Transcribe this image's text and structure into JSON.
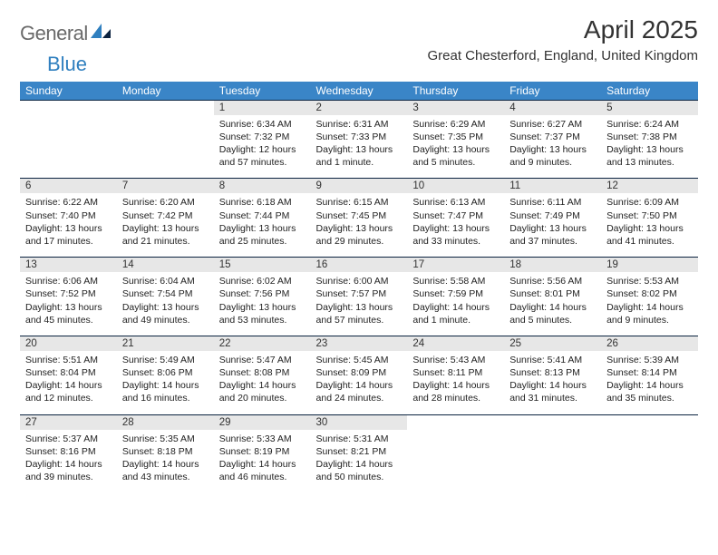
{
  "logo": {
    "text1": "General",
    "text2": "Blue"
  },
  "title": "April 2025",
  "location": "Great Chesterford, England, United Kingdom",
  "dayHeaders": [
    "Sunday",
    "Monday",
    "Tuesday",
    "Wednesday",
    "Thursday",
    "Friday",
    "Saturday"
  ],
  "colors": {
    "headerBg": "#3a85c7",
    "headerText": "#ffffff",
    "dayNumBg": "#e7e7e7",
    "borderTop": "#0b2340",
    "logoGray": "#6a6a6a",
    "logoBlue": "#2f7fbf",
    "text": "#323232"
  },
  "weeks": [
    [
      null,
      null,
      {
        "n": "1",
        "l1": "Sunrise: 6:34 AM",
        "l2": "Sunset: 7:32 PM",
        "l3": "Daylight: 12 hours",
        "l4": "and 57 minutes."
      },
      {
        "n": "2",
        "l1": "Sunrise: 6:31 AM",
        "l2": "Sunset: 7:33 PM",
        "l3": "Daylight: 13 hours",
        "l4": "and 1 minute."
      },
      {
        "n": "3",
        "l1": "Sunrise: 6:29 AM",
        "l2": "Sunset: 7:35 PM",
        "l3": "Daylight: 13 hours",
        "l4": "and 5 minutes."
      },
      {
        "n": "4",
        "l1": "Sunrise: 6:27 AM",
        "l2": "Sunset: 7:37 PM",
        "l3": "Daylight: 13 hours",
        "l4": "and 9 minutes."
      },
      {
        "n": "5",
        "l1": "Sunrise: 6:24 AM",
        "l2": "Sunset: 7:38 PM",
        "l3": "Daylight: 13 hours",
        "l4": "and 13 minutes."
      }
    ],
    [
      {
        "n": "6",
        "l1": "Sunrise: 6:22 AM",
        "l2": "Sunset: 7:40 PM",
        "l3": "Daylight: 13 hours",
        "l4": "and 17 minutes."
      },
      {
        "n": "7",
        "l1": "Sunrise: 6:20 AM",
        "l2": "Sunset: 7:42 PM",
        "l3": "Daylight: 13 hours",
        "l4": "and 21 minutes."
      },
      {
        "n": "8",
        "l1": "Sunrise: 6:18 AM",
        "l2": "Sunset: 7:44 PM",
        "l3": "Daylight: 13 hours",
        "l4": "and 25 minutes."
      },
      {
        "n": "9",
        "l1": "Sunrise: 6:15 AM",
        "l2": "Sunset: 7:45 PM",
        "l3": "Daylight: 13 hours",
        "l4": "and 29 minutes."
      },
      {
        "n": "10",
        "l1": "Sunrise: 6:13 AM",
        "l2": "Sunset: 7:47 PM",
        "l3": "Daylight: 13 hours",
        "l4": "and 33 minutes."
      },
      {
        "n": "11",
        "l1": "Sunrise: 6:11 AM",
        "l2": "Sunset: 7:49 PM",
        "l3": "Daylight: 13 hours",
        "l4": "and 37 minutes."
      },
      {
        "n": "12",
        "l1": "Sunrise: 6:09 AM",
        "l2": "Sunset: 7:50 PM",
        "l3": "Daylight: 13 hours",
        "l4": "and 41 minutes."
      }
    ],
    [
      {
        "n": "13",
        "l1": "Sunrise: 6:06 AM",
        "l2": "Sunset: 7:52 PM",
        "l3": "Daylight: 13 hours",
        "l4": "and 45 minutes."
      },
      {
        "n": "14",
        "l1": "Sunrise: 6:04 AM",
        "l2": "Sunset: 7:54 PM",
        "l3": "Daylight: 13 hours",
        "l4": "and 49 minutes."
      },
      {
        "n": "15",
        "l1": "Sunrise: 6:02 AM",
        "l2": "Sunset: 7:56 PM",
        "l3": "Daylight: 13 hours",
        "l4": "and 53 minutes."
      },
      {
        "n": "16",
        "l1": "Sunrise: 6:00 AM",
        "l2": "Sunset: 7:57 PM",
        "l3": "Daylight: 13 hours",
        "l4": "and 57 minutes."
      },
      {
        "n": "17",
        "l1": "Sunrise: 5:58 AM",
        "l2": "Sunset: 7:59 PM",
        "l3": "Daylight: 14 hours",
        "l4": "and 1 minute."
      },
      {
        "n": "18",
        "l1": "Sunrise: 5:56 AM",
        "l2": "Sunset: 8:01 PM",
        "l3": "Daylight: 14 hours",
        "l4": "and 5 minutes."
      },
      {
        "n": "19",
        "l1": "Sunrise: 5:53 AM",
        "l2": "Sunset: 8:02 PM",
        "l3": "Daylight: 14 hours",
        "l4": "and 9 minutes."
      }
    ],
    [
      {
        "n": "20",
        "l1": "Sunrise: 5:51 AM",
        "l2": "Sunset: 8:04 PM",
        "l3": "Daylight: 14 hours",
        "l4": "and 12 minutes."
      },
      {
        "n": "21",
        "l1": "Sunrise: 5:49 AM",
        "l2": "Sunset: 8:06 PM",
        "l3": "Daylight: 14 hours",
        "l4": "and 16 minutes."
      },
      {
        "n": "22",
        "l1": "Sunrise: 5:47 AM",
        "l2": "Sunset: 8:08 PM",
        "l3": "Daylight: 14 hours",
        "l4": "and 20 minutes."
      },
      {
        "n": "23",
        "l1": "Sunrise: 5:45 AM",
        "l2": "Sunset: 8:09 PM",
        "l3": "Daylight: 14 hours",
        "l4": "and 24 minutes."
      },
      {
        "n": "24",
        "l1": "Sunrise: 5:43 AM",
        "l2": "Sunset: 8:11 PM",
        "l3": "Daylight: 14 hours",
        "l4": "and 28 minutes."
      },
      {
        "n": "25",
        "l1": "Sunrise: 5:41 AM",
        "l2": "Sunset: 8:13 PM",
        "l3": "Daylight: 14 hours",
        "l4": "and 31 minutes."
      },
      {
        "n": "26",
        "l1": "Sunrise: 5:39 AM",
        "l2": "Sunset: 8:14 PM",
        "l3": "Daylight: 14 hours",
        "l4": "and 35 minutes."
      }
    ],
    [
      {
        "n": "27",
        "l1": "Sunrise: 5:37 AM",
        "l2": "Sunset: 8:16 PM",
        "l3": "Daylight: 14 hours",
        "l4": "and 39 minutes."
      },
      {
        "n": "28",
        "l1": "Sunrise: 5:35 AM",
        "l2": "Sunset: 8:18 PM",
        "l3": "Daylight: 14 hours",
        "l4": "and 43 minutes."
      },
      {
        "n": "29",
        "l1": "Sunrise: 5:33 AM",
        "l2": "Sunset: 8:19 PM",
        "l3": "Daylight: 14 hours",
        "l4": "and 46 minutes."
      },
      {
        "n": "30",
        "l1": "Sunrise: 5:31 AM",
        "l2": "Sunset: 8:21 PM",
        "l3": "Daylight: 14 hours",
        "l4": "and 50 minutes."
      },
      null,
      null,
      null
    ]
  ]
}
